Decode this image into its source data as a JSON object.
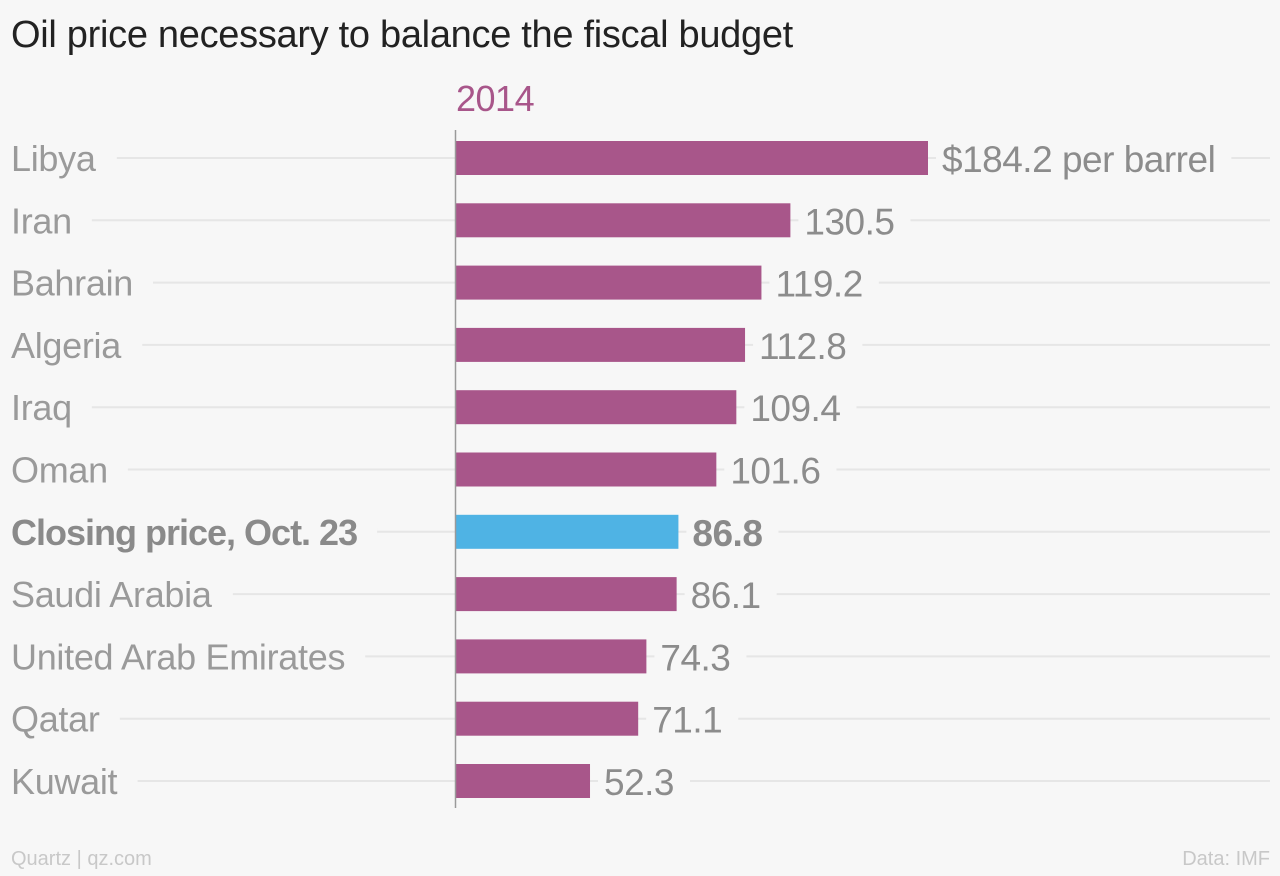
{
  "title": "Oil price necessary to balance the fiscal budget",
  "footer": {
    "source_left": "Quartz | qz.com",
    "source_right": "Data: IMF"
  },
  "colors": {
    "bar": "#a8568a",
    "highlight_bar": "#4fb3e4",
    "label": "#9a9a9a",
    "value_label": "#8c8c8c",
    "gridline": "#e6e6e6",
    "axis": "#9a9a9a"
  },
  "chart_data": {
    "type": "bar",
    "orientation": "horizontal",
    "series": [
      {
        "name": "2014",
        "values": [
          184.2,
          130.5,
          119.2,
          112.8,
          109.4,
          101.6,
          86.8,
          86.1,
          74.3,
          71.1,
          52.3
        ]
      }
    ],
    "categories": [
      "Libya",
      "Iran",
      "Bahrain",
      "Algeria",
      "Iraq",
      "Oman",
      "Closing price, Oct. 23",
      "Saudi Arabia",
      "United Arab Emirates",
      "Qatar",
      "Kuwait"
    ],
    "value_labels": [
      "$184.2 per barrel",
      "130.5",
      "119.2",
      "112.8",
      "109.4",
      "101.6",
      "86.8",
      "86.1",
      "74.3",
      "71.1",
      "52.3"
    ],
    "highlight_category": "Closing price, Oct. 23",
    "xlim": [
      0,
      184.2
    ],
    "grid": true,
    "legend": "none"
  }
}
